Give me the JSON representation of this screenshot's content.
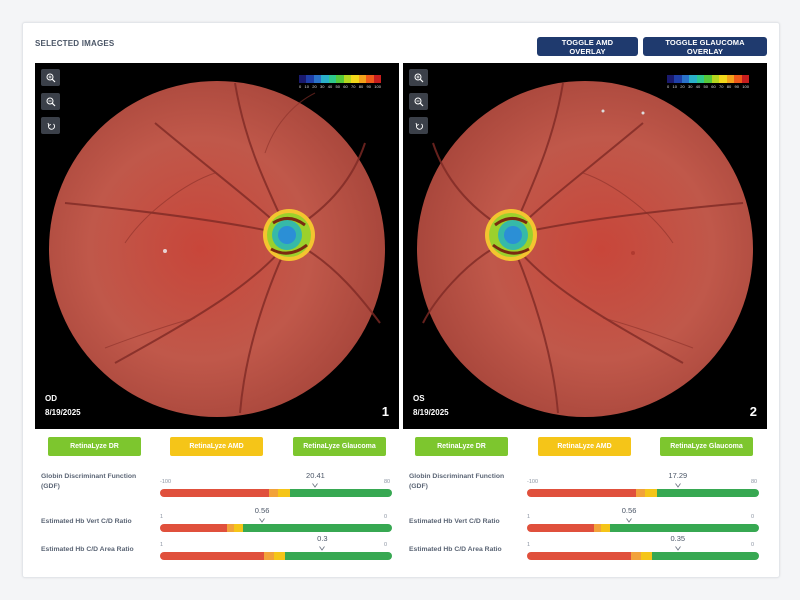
{
  "header": {
    "title": "SELECTED IMAGES",
    "amd_button": "TOGGLE AMD OVERLAY",
    "glaucoma_button": "TOGGLE GLAUCOMA OVERLAY"
  },
  "scale_ticks": [
    "0",
    "10",
    "20",
    "30",
    "40",
    "50",
    "60",
    "70",
    "80",
    "90",
    "100"
  ],
  "scale_colors": [
    "#1a1a6e",
    "#1f3fa8",
    "#2a72c9",
    "#2ab0c9",
    "#2fc98c",
    "#55c93a",
    "#b5d61f",
    "#f2d81a",
    "#f4a21a",
    "#ef5a1a",
    "#c81e1e"
  ],
  "eyes": [
    {
      "eye": "OD",
      "date": "8/19/2025",
      "index": "1",
      "algorithms": [
        "RetinaLyze DR",
        "RetinaLyze AMD",
        "RetinaLyze Glaucoma"
      ],
      "metrics": [
        {
          "label_line1": "Globin Discriminant Function",
          "label_line2": "(GDF)",
          "value": "20.41",
          "min": "-100",
          "max": "80",
          "position": 0.67
        },
        {
          "label_line1": "Estimated Hb Vert C/D Ratio",
          "label_line2": "",
          "value": "0.56",
          "min": "1",
          "max": "0",
          "position": 0.44
        },
        {
          "label_line1": "Estimated Hb C/D Area Ratio",
          "label_line2": "",
          "value": "0.3",
          "min": "1",
          "max": "0",
          "position": 0.7
        }
      ]
    },
    {
      "eye": "OS",
      "date": "8/19/2025",
      "index": "2",
      "algorithms": [
        "RetinaLyze DR",
        "RetinaLyze AMD",
        "RetinaLyze Glaucoma"
      ],
      "metrics": [
        {
          "label_line1": "Globin Discriminant Function",
          "label_line2": "(GDF)",
          "value": "17.29",
          "min": "-100",
          "max": "80",
          "position": 0.65
        },
        {
          "label_line1": "Estimated Hb Vert C/D Ratio",
          "label_line2": "",
          "value": "0.56",
          "min": "1",
          "max": "0",
          "position": 0.44
        },
        {
          "label_line1": "Estimated Hb C/D Area Ratio",
          "label_line2": "",
          "value": "0.35",
          "min": "1",
          "max": "0",
          "position": 0.65
        }
      ]
    }
  ],
  "colors": {
    "navy": "#1f3a6e",
    "dr_green": "#7dc62e",
    "amd_yellow": "#f5c518",
    "bar_red": "#e0503c",
    "bar_orange": "#f2a23a",
    "bar_yellow": "#f5c518",
    "bar_green": "#37a852"
  }
}
